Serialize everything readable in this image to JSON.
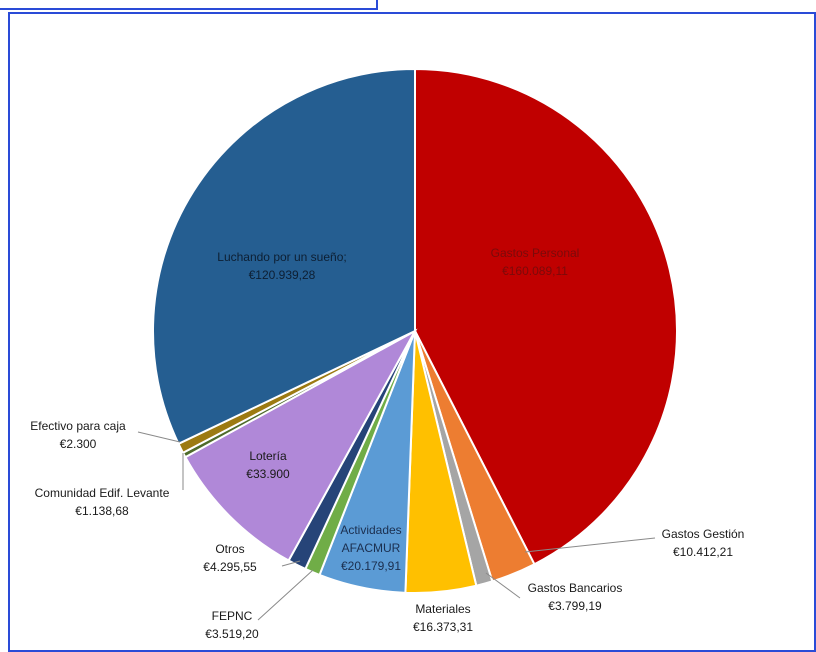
{
  "chart_data": {
    "type": "pie",
    "title": "",
    "slices": [
      {
        "name": "Gastos Personal",
        "value_label": "€160.089,11",
        "value": 160089.11,
        "color": "#C00000"
      },
      {
        "name": "Gastos Gestión",
        "value_label": "€10.412,21",
        "value": 10412.21,
        "color": "#ED7D31"
      },
      {
        "name": "Gastos Bancarios",
        "value_label": "€3.799,19",
        "value": 3799.19,
        "color": "#A5A5A5"
      },
      {
        "name": "Materiales",
        "value_label": "€16.373,31",
        "value": 16373.31,
        "color": "#FFC000"
      },
      {
        "name": "Actividades AFACMUR",
        "value_label": "€20.179,91",
        "value": 20179.91,
        "color": "#5B9BD5"
      },
      {
        "name": "FEPNC",
        "value_label": "€3.519,20",
        "value": 3519.2,
        "color": "#70AD47"
      },
      {
        "name": "Otros",
        "value_label": "€4.295,55",
        "value": 4295.55,
        "color": "#264478"
      },
      {
        "name": "Lotería",
        "value_label": "€33.900",
        "value": 33900,
        "color": "#B088D8"
      },
      {
        "name": "Comunidad Edif. Levante",
        "value_label": "€1.138,68",
        "value": 1138.68,
        "color": "#4E6B2A"
      },
      {
        "name": "Efectivo para caja",
        "value_label": "€2.300",
        "value": 2300,
        "color": "#9C7A12"
      },
      {
        "name": "Luchando por un sueño;",
        "value_label": "€120.939,28",
        "value": 120939.28,
        "color": "#255E91"
      }
    ]
  }
}
